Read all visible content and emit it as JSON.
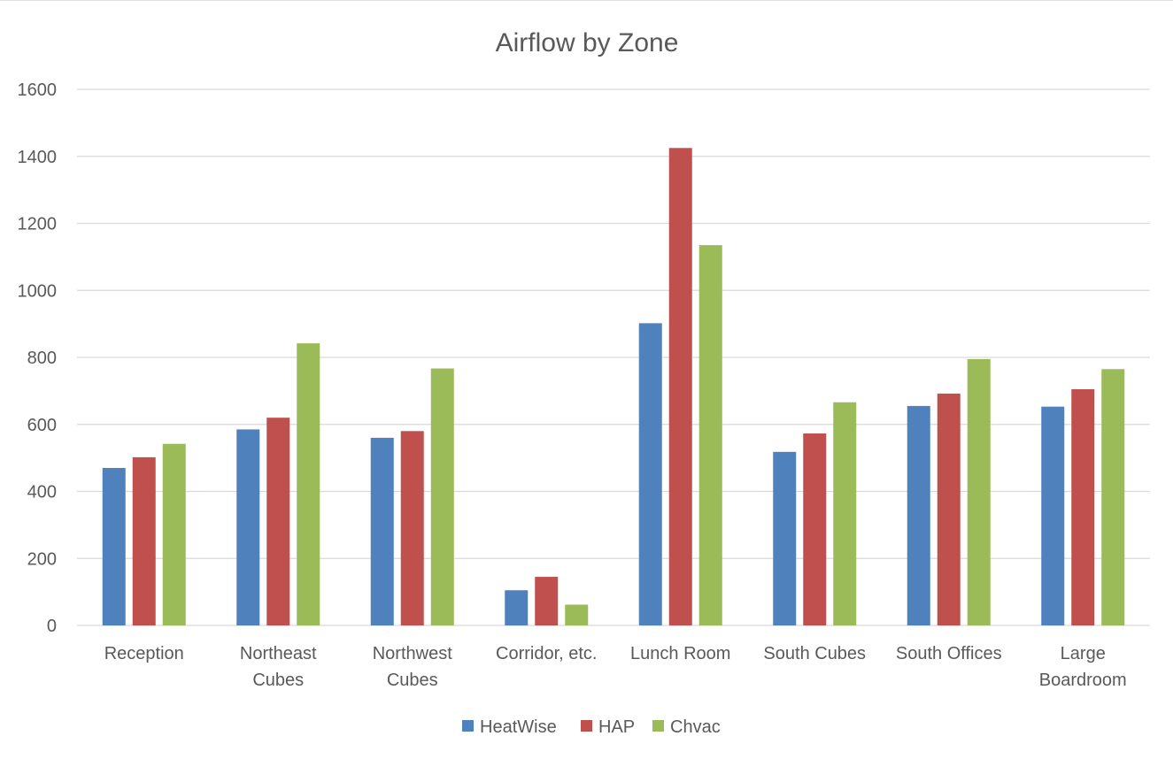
{
  "chart_data": {
    "type": "bar",
    "title": "Airflow by Zone",
    "xlabel": "",
    "ylabel": "",
    "categories": [
      [
        "Reception"
      ],
      [
        "Northeast",
        "Cubes"
      ],
      [
        "Northwest",
        "Cubes"
      ],
      [
        "Corridor, etc."
      ],
      [
        "Lunch Room"
      ],
      [
        "South Cubes"
      ],
      [
        "South Offices"
      ],
      [
        "Large",
        "Boardroom"
      ]
    ],
    "series": [
      {
        "name": "HeatWise",
        "color": "#4f81bd",
        "values": [
          470,
          585,
          560,
          105,
          902,
          518,
          655,
          653
        ]
      },
      {
        "name": "HAP",
        "color": "#c0504d",
        "values": [
          502,
          620,
          580,
          145,
          1425,
          573,
          692,
          705
        ]
      },
      {
        "name": "Chvac",
        "color": "#9bbb59",
        "values": [
          542,
          842,
          767,
          62,
          1135,
          666,
          795,
          765
        ]
      }
    ],
    "ylim": [
      0,
      1600
    ],
    "yticks": [
      0,
      200,
      400,
      600,
      800,
      1000,
      1200,
      1400,
      1600
    ],
    "grid": true,
    "legend_position": "bottom"
  }
}
